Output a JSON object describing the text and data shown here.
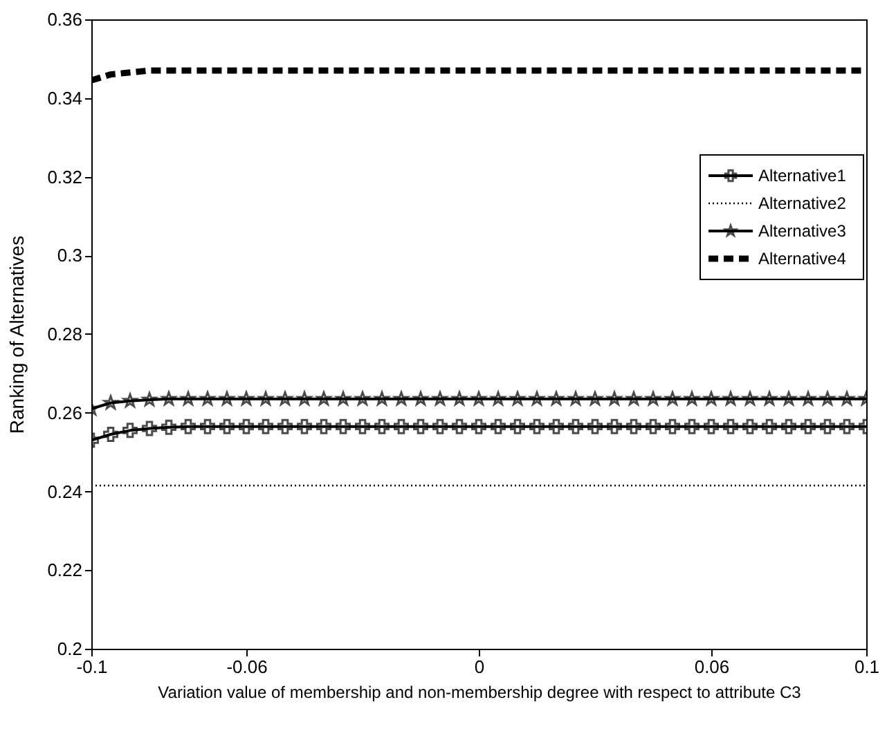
{
  "chart_data": {
    "type": "line",
    "xlabel": "Variation value of membership and non-membership degree with respect to attribute C3",
    "ylabel": "Ranking of Alternatives",
    "x": [
      -0.1,
      -0.095,
      -0.09,
      -0.085,
      -0.08,
      -0.075,
      -0.07,
      -0.065,
      -0.06,
      -0.055,
      -0.05,
      -0.045,
      -0.04,
      -0.035,
      -0.03,
      -0.025,
      -0.02,
      -0.015,
      -0.01,
      -0.005,
      0,
      0.005,
      0.01,
      0.015,
      0.02,
      0.025,
      0.03,
      0.035,
      0.04,
      0.045,
      0.05,
      0.055,
      0.06,
      0.065,
      0.07,
      0.075,
      0.08,
      0.085,
      0.09,
      0.095,
      0.1
    ],
    "series": [
      {
        "name": "Alternative1",
        "color": "#000000",
        "marker": "cross",
        "line_style": "solid",
        "values": [
          0.253,
          0.2545,
          0.2555,
          0.256,
          0.2563,
          0.2565,
          0.2565,
          0.2565,
          0.2565,
          0.2565,
          0.2565,
          0.2565,
          0.2565,
          0.2565,
          0.2565,
          0.2565,
          0.2565,
          0.2565,
          0.2565,
          0.2565,
          0.2565,
          0.2565,
          0.2565,
          0.2565,
          0.2565,
          0.2565,
          0.2565,
          0.2565,
          0.2565,
          0.2565,
          0.2565,
          0.2565,
          0.2565,
          0.2565,
          0.2565,
          0.2565,
          0.2565,
          0.2565,
          0.2565,
          0.2565,
          0.2565
        ]
      },
      {
        "name": "Alternative2",
        "color": "#000000",
        "marker": "none",
        "line_style": "dotted",
        "values": [
          0.2415,
          0.2415,
          0.2415,
          0.2415,
          0.2415,
          0.2415,
          0.2415,
          0.2415,
          0.2415,
          0.2415,
          0.2415,
          0.2415,
          0.2415,
          0.2415,
          0.2415,
          0.2415,
          0.2415,
          0.2415,
          0.2415,
          0.2415,
          0.2415,
          0.2415,
          0.2415,
          0.2415,
          0.2415,
          0.2415,
          0.2415,
          0.2415,
          0.2415,
          0.2415,
          0.2415,
          0.2415,
          0.2415,
          0.2415,
          0.2415,
          0.2415,
          0.2415,
          0.2415,
          0.2415,
          0.2415,
          0.2415
        ]
      },
      {
        "name": "Alternative3",
        "color": "#000000",
        "marker": "star",
        "line_style": "solid",
        "values": [
          0.261,
          0.2625,
          0.263,
          0.2633,
          0.2635,
          0.2635,
          0.2635,
          0.2635,
          0.2635,
          0.2635,
          0.2635,
          0.2635,
          0.2635,
          0.2635,
          0.2635,
          0.2635,
          0.2635,
          0.2635,
          0.2635,
          0.2635,
          0.2635,
          0.2635,
          0.2635,
          0.2635,
          0.2635,
          0.2635,
          0.2635,
          0.2635,
          0.2635,
          0.2635,
          0.2635,
          0.2635,
          0.2635,
          0.2635,
          0.2635,
          0.2635,
          0.2635,
          0.2635,
          0.2635,
          0.2635,
          0.2635
        ]
      },
      {
        "name": "Alternative4",
        "color": "#000000",
        "marker": "none",
        "line_style": "dashed",
        "values": [
          0.3445,
          0.346,
          0.3465,
          0.347,
          0.347,
          0.347,
          0.347,
          0.347,
          0.347,
          0.347,
          0.347,
          0.347,
          0.347,
          0.347,
          0.347,
          0.347,
          0.347,
          0.347,
          0.347,
          0.347,
          0.347,
          0.347,
          0.347,
          0.347,
          0.347,
          0.347,
          0.347,
          0.347,
          0.347,
          0.347,
          0.347,
          0.347,
          0.347,
          0.347,
          0.347,
          0.347,
          0.347,
          0.347,
          0.347,
          0.347,
          0.347
        ]
      }
    ],
    "xlim": [
      -0.1,
      0.1
    ],
    "xticks": [
      -0.1,
      -0.06,
      0,
      0.06,
      0.1
    ],
    "ylim": [
      0.2,
      0.36
    ],
    "yticks": [
      0.2,
      0.22,
      0.24,
      0.26,
      0.28,
      0.3,
      0.32,
      0.34,
      0.36
    ],
    "grid": false,
    "legend": "top right"
  }
}
